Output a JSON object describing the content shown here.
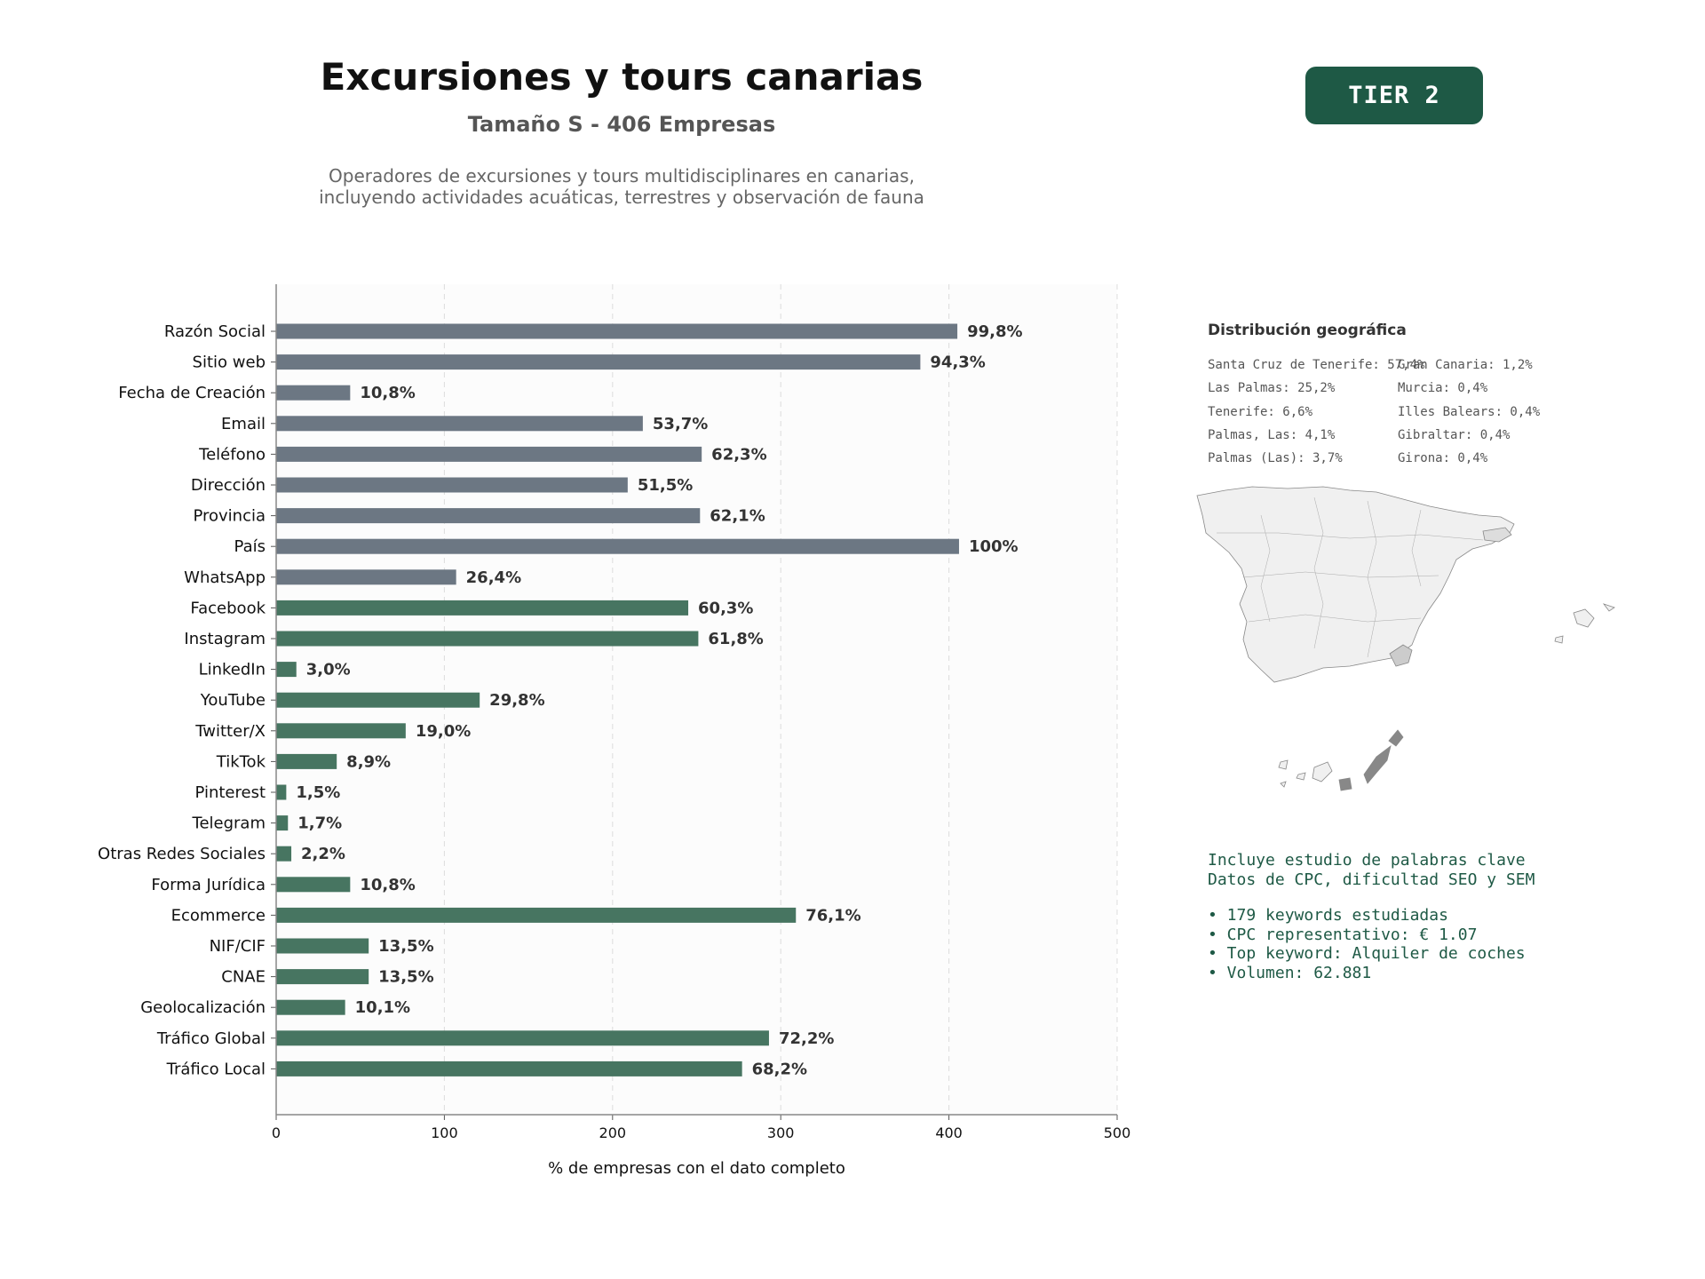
{
  "header": {
    "title": "Excursiones y tours canarias",
    "subtitle": "Tamaño S - 406 Empresas",
    "description_lines": [
      "Operadores de excursiones y tours multidisciplinares en canarias,",
      "incluyendo actividades acuáticas, terrestres y observación de fauna"
    ]
  },
  "tier_badge": "TIER 2",
  "colors": {
    "basic": "#6c7783",
    "social": "#477561",
    "tier_bg": "#1e5945",
    "kw_text": "#1e5945",
    "highlight_dark": "#888888",
    "highlight_mid": "#cccccc",
    "region_fill": "#f0f0f0"
  },
  "chart_data": {
    "type": "bar",
    "orientation": "horizontal",
    "xlabel": "% de empresas con el dato completo",
    "xlim": [
      0,
      500
    ],
    "xticks": [
      0,
      100,
      200,
      300,
      400,
      500
    ],
    "grid": true,
    "categories": [
      "Razón Social",
      "Sitio web",
      "Fecha de Creación",
      "Email",
      "Teléfono",
      "Dirección",
      "Provincia",
      "País",
      "WhatsApp",
      "Facebook",
      "Instagram",
      "LinkedIn",
      "YouTube",
      "Twitter/X",
      "TikTok",
      "Pinterest",
      "Telegram",
      "Otras Redes Sociales",
      "Forma Jurídica",
      "Ecommerce",
      "NIF/CIF",
      "CNAE",
      "Geolocalización",
      "Tráfico Global",
      "Tráfico Local"
    ],
    "values": [
      405,
      383,
      44,
      218,
      253,
      209,
      252,
      406,
      107,
      245,
      251,
      12,
      121,
      77,
      36,
      6,
      7,
      9,
      44,
      309,
      55,
      55,
      41,
      293,
      277
    ],
    "labels": [
      "99,8%",
      "94,3%",
      "10,8%",
      "53,7%",
      "62,3%",
      "51,5%",
      "62,1%",
      "100%",
      "26,4%",
      "60,3%",
      "61,8%",
      "3,0%",
      "29,8%",
      "19,0%",
      "8,9%",
      "1,5%",
      "1,7%",
      "2,2%",
      "10,8%",
      "76,1%",
      "13,5%",
      "13,5%",
      "10,1%",
      "72,2%",
      "68,2%"
    ],
    "groups": [
      "basic",
      "basic",
      "basic",
      "basic",
      "basic",
      "basic",
      "basic",
      "basic",
      "basic",
      "social",
      "social",
      "social",
      "social",
      "social",
      "social",
      "social",
      "social",
      "social",
      "social",
      "social",
      "social",
      "social",
      "social",
      "social",
      "social"
    ]
  },
  "geo": {
    "title": "Distribución geográfica",
    "col1": [
      "Santa Cruz de Tenerife: 57,4%",
      "Las Palmas: 25,2%",
      "Tenerife: 6,6%",
      "Palmas, Las: 4,1%",
      "Palmas (Las): 3,7%"
    ],
    "col2": [
      "Gran Canaria: 1,2%",
      "Murcia: 0,4%",
      "Illes Balears: 0,4%",
      "Gibraltar: 0,4%",
      "Girona: 0,4%"
    ]
  },
  "keywords": {
    "intro_lines": [
      "Incluye estudio de palabras clave",
      "Datos de CPC, dificultad SEO y SEM"
    ],
    "bullets": [
      "• 179 keywords estudiadas",
      "• CPC representativo: € 1.07",
      "• Top keyword: Alquiler de coches",
      "• Volumen: 62.881"
    ]
  }
}
